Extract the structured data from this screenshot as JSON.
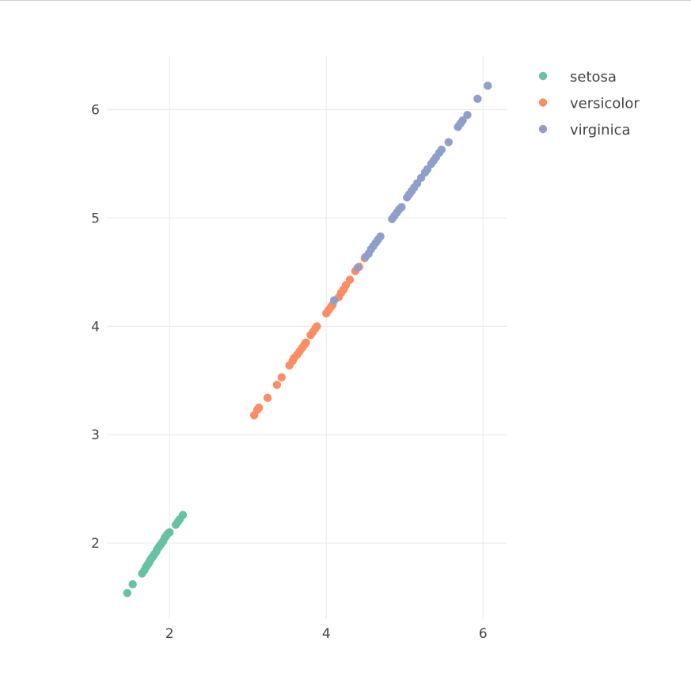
{
  "chart_data": {
    "type": "scatter",
    "title": "",
    "xlabel": "",
    "ylabel": "",
    "xlim": [
      1.2,
      6.3
    ],
    "ylim": [
      1.3,
      6.5
    ],
    "xticks": [
      2,
      4,
      6
    ],
    "yticks": [
      2,
      3,
      4,
      5,
      6
    ],
    "grid": true,
    "legend_position": "top-right",
    "series": [
      {
        "name": "setosa",
        "color": "#66c2a5",
        "points": [
          [
            1.46,
            1.54
          ],
          [
            1.53,
            1.62
          ],
          [
            1.65,
            1.72
          ],
          [
            1.68,
            1.75
          ],
          [
            1.7,
            1.78
          ],
          [
            1.72,
            1.8
          ],
          [
            1.74,
            1.82
          ],
          [
            1.75,
            1.84
          ],
          [
            1.77,
            1.86
          ],
          [
            1.78,
            1.87
          ],
          [
            1.8,
            1.89
          ],
          [
            1.81,
            1.9
          ],
          [
            1.83,
            1.92
          ],
          [
            1.84,
            1.94
          ],
          [
            1.86,
            1.96
          ],
          [
            1.87,
            1.97
          ],
          [
            1.89,
            1.99
          ],
          [
            1.9,
            2.0
          ],
          [
            1.92,
            2.02
          ],
          [
            1.94,
            2.05
          ],
          [
            1.96,
            2.07
          ],
          [
            1.98,
            2.09
          ],
          [
            2.0,
            2.1
          ],
          [
            2.08,
            2.17
          ],
          [
            2.11,
            2.2
          ],
          [
            2.13,
            2.22
          ],
          [
            2.17,
            2.26
          ]
        ]
      },
      {
        "name": "versicolor",
        "color": "#fc8d62",
        "points": [
          [
            3.08,
            3.18
          ],
          [
            3.12,
            3.23
          ],
          [
            3.14,
            3.25
          ],
          [
            3.25,
            3.34
          ],
          [
            3.37,
            3.46
          ],
          [
            3.43,
            3.53
          ],
          [
            3.53,
            3.64
          ],
          [
            3.57,
            3.68
          ],
          [
            3.59,
            3.71
          ],
          [
            3.63,
            3.74
          ],
          [
            3.66,
            3.77
          ],
          [
            3.69,
            3.8
          ],
          [
            3.72,
            3.83
          ],
          [
            3.74,
            3.85
          ],
          [
            3.8,
            3.92
          ],
          [
            3.83,
            3.95
          ],
          [
            3.86,
            3.98
          ],
          [
            3.88,
            4.0
          ],
          [
            4.0,
            4.12
          ],
          [
            4.03,
            4.15
          ],
          [
            4.06,
            4.18
          ],
          [
            4.08,
            4.2
          ],
          [
            4.16,
            4.27
          ],
          [
            4.19,
            4.31
          ],
          [
            4.22,
            4.34
          ],
          [
            4.25,
            4.38
          ],
          [
            4.3,
            4.43
          ],
          [
            4.37,
            4.51
          ],
          [
            4.42,
            4.55
          ],
          [
            4.49,
            4.63
          ]
        ]
      },
      {
        "name": "virginica",
        "color": "#8da0cb",
        "points": [
          [
            4.1,
            4.24
          ],
          [
            4.4,
            4.54
          ],
          [
            4.5,
            4.64
          ],
          [
            4.54,
            4.67
          ],
          [
            4.57,
            4.71
          ],
          [
            4.6,
            4.74
          ],
          [
            4.63,
            4.77
          ],
          [
            4.66,
            4.8
          ],
          [
            4.69,
            4.83
          ],
          [
            4.84,
            4.99
          ],
          [
            4.87,
            5.02
          ],
          [
            4.9,
            5.05
          ],
          [
            4.93,
            5.08
          ],
          [
            4.96,
            5.1
          ],
          [
            5.03,
            5.19
          ],
          [
            5.06,
            5.22
          ],
          [
            5.09,
            5.25
          ],
          [
            5.12,
            5.28
          ],
          [
            5.16,
            5.32
          ],
          [
            5.21,
            5.37
          ],
          [
            5.26,
            5.42
          ],
          [
            5.29,
            5.45
          ],
          [
            5.34,
            5.5
          ],
          [
            5.37,
            5.53
          ],
          [
            5.4,
            5.56
          ],
          [
            5.44,
            5.6
          ],
          [
            5.47,
            5.63
          ],
          [
            5.56,
            5.7
          ],
          [
            5.68,
            5.84
          ],
          [
            5.71,
            5.87
          ],
          [
            5.74,
            5.9
          ],
          [
            5.8,
            5.95
          ],
          [
            5.93,
            6.1
          ],
          [
            6.06,
            6.22
          ]
        ]
      }
    ]
  }
}
